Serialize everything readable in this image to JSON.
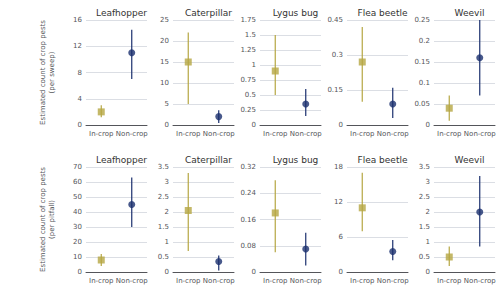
{
  "chart_data": [
    {
      "type": "scatter",
      "title": "Leafhopper",
      "ylabel": "Estimated count of crop pests\n(per sweep)",
      "categories": [
        "In-crop",
        "Non-crop"
      ],
      "series": [
        {
          "color": "#b5a642",
          "marker": "square",
          "values": [
            2.0,
            null
          ],
          "lower": [
            1.2,
            null
          ],
          "upper": [
            3.0,
            null
          ]
        },
        {
          "color": "#1a2f6e",
          "marker": "circle",
          "values": [
            null,
            11.0
          ],
          "lower": [
            null,
            7.0
          ],
          "upper": [
            null,
            14.5
          ]
        }
      ],
      "ylim": [
        0,
        16
      ],
      "yticks": [
        0,
        4,
        8,
        12,
        16
      ],
      "grid": true
    },
    {
      "type": "scatter",
      "title": "Caterpillar",
      "categories": [
        "In-crop",
        "Non-crop"
      ],
      "series": [
        {
          "color": "#b5a642",
          "marker": "square",
          "values": [
            15.0,
            null
          ],
          "lower": [
            5.0,
            null
          ],
          "upper": [
            22.0,
            null
          ]
        },
        {
          "color": "#1a2f6e",
          "marker": "circle",
          "values": [
            null,
            2.0
          ],
          "lower": [
            null,
            0.5
          ],
          "upper": [
            null,
            3.5
          ]
        }
      ],
      "ylim": [
        0,
        25
      ],
      "yticks": [
        0,
        5,
        10,
        15,
        20,
        25
      ],
      "grid": true
    },
    {
      "type": "scatter",
      "title": "Lygus bug",
      "categories": [
        "In-crop",
        "Non-crop"
      ],
      "series": [
        {
          "color": "#b5a642",
          "marker": "square",
          "values": [
            0.9,
            null
          ],
          "lower": [
            0.5,
            null
          ],
          "upper": [
            1.5,
            null
          ]
        },
        {
          "color": "#1a2f6e",
          "marker": "circle",
          "values": [
            null,
            0.35
          ],
          "lower": [
            null,
            0.15
          ],
          "upper": [
            null,
            0.6
          ]
        }
      ],
      "ylim": [
        0,
        1.75
      ],
      "yticks": [
        0,
        0.25,
        0.5,
        0.75,
        1,
        1.25,
        1.5,
        1.75
      ],
      "grid": true
    },
    {
      "type": "scatter",
      "title": "Flea beetle",
      "categories": [
        "In-crop",
        "Non-crop"
      ],
      "series": [
        {
          "color": "#b5a642",
          "marker": "square",
          "values": [
            0.27,
            null
          ],
          "lower": [
            0.1,
            null
          ],
          "upper": [
            0.42,
            null
          ]
        },
        {
          "color": "#1a2f6e",
          "marker": "circle",
          "values": [
            null,
            0.09
          ],
          "lower": [
            null,
            0.03
          ],
          "upper": [
            null,
            0.16
          ]
        }
      ],
      "ylim": [
        0,
        0.45
      ],
      "yticks": [
        0,
        0.15,
        0.3,
        0.45
      ],
      "grid": true
    },
    {
      "type": "scatter",
      "title": "Weevil",
      "categories": [
        "In-crop",
        "Non-crop"
      ],
      "series": [
        {
          "color": "#b5a642",
          "marker": "square",
          "values": [
            0.04,
            null
          ],
          "lower": [
            0.01,
            null
          ],
          "upper": [
            0.07,
            null
          ]
        },
        {
          "color": "#1a2f6e",
          "marker": "circle",
          "values": [
            null,
            0.16
          ],
          "lower": [
            null,
            0.07
          ],
          "upper": [
            null,
            0.25
          ]
        }
      ],
      "ylim": [
        0,
        0.25
      ],
      "yticks": [
        0,
        0.05,
        0.1,
        0.15,
        0.2,
        0.25
      ],
      "grid": true
    },
    {
      "type": "scatter",
      "title": "Leafhopper",
      "ylabel": "Estimated count of crop pests\n(per pitfall)",
      "categories": [
        "In-crop",
        "Non-crop"
      ],
      "series": [
        {
          "color": "#b5a642",
          "marker": "square",
          "values": [
            8.0,
            null
          ],
          "lower": [
            4.0,
            null
          ],
          "upper": [
            12.0,
            null
          ]
        },
        {
          "color": "#1a2f6e",
          "marker": "circle",
          "values": [
            null,
            45.0
          ],
          "lower": [
            null,
            30.0
          ],
          "upper": [
            null,
            63.0
          ]
        }
      ],
      "ylim": [
        0,
        70
      ],
      "yticks": [
        0,
        10,
        20,
        30,
        40,
        50,
        60,
        70
      ],
      "grid": true
    },
    {
      "type": "scatter",
      "title": "Caterpillar",
      "categories": [
        "In-crop",
        "Non-crop"
      ],
      "series": [
        {
          "color": "#b5a642",
          "marker": "square",
          "values": [
            2.05,
            null
          ],
          "lower": [
            0.7,
            null
          ],
          "upper": [
            3.3,
            null
          ]
        },
        {
          "color": "#1a2f6e",
          "marker": "circle",
          "values": [
            null,
            0.35
          ],
          "lower": [
            null,
            0.05
          ],
          "upper": [
            null,
            0.55
          ]
        }
      ],
      "ylim": [
        0,
        3.5
      ],
      "yticks": [
        0,
        0.5,
        1,
        1.5,
        2,
        2.5,
        3,
        3.5
      ],
      "grid": true
    },
    {
      "type": "scatter",
      "title": "Lygus bug",
      "categories": [
        "In-crop",
        "Non-crop"
      ],
      "series": [
        {
          "color": "#b5a642",
          "marker": "square",
          "values": [
            0.18,
            null
          ],
          "lower": [
            0.06,
            null
          ],
          "upper": [
            0.28,
            null
          ]
        },
        {
          "color": "#1a2f6e",
          "marker": "circle",
          "values": [
            null,
            0.07
          ],
          "lower": [
            null,
            0.02
          ],
          "upper": [
            null,
            0.12
          ]
        }
      ],
      "ylim": [
        0,
        0.32
      ],
      "yticks": [
        0,
        0.08,
        0.16,
        0.24,
        0.32
      ],
      "grid": true
    },
    {
      "type": "scatter",
      "title": "Flea beetle",
      "categories": [
        "In-crop",
        "Non-crop"
      ],
      "series": [
        {
          "color": "#b5a642",
          "marker": "square",
          "values": [
            11.0,
            null
          ],
          "lower": [
            7.0,
            null
          ],
          "upper": [
            17.0,
            null
          ]
        },
        {
          "color": "#1a2f6e",
          "marker": "circle",
          "values": [
            null,
            3.5
          ],
          "lower": [
            null,
            2.0
          ],
          "upper": [
            null,
            5.5
          ]
        }
      ],
      "ylim": [
        0,
        18
      ],
      "yticks": [
        0,
        6,
        12,
        18
      ],
      "grid": true
    },
    {
      "type": "scatter",
      "title": "Weevil",
      "categories": [
        "In-crop",
        "Non-crop"
      ],
      "series": [
        {
          "color": "#b5a642",
          "marker": "square",
          "values": [
            0.5,
            null
          ],
          "lower": [
            0.2,
            null
          ],
          "upper": [
            0.85,
            null
          ]
        },
        {
          "color": "#1a2f6e",
          "marker": "circle",
          "values": [
            null,
            2.0
          ],
          "lower": [
            null,
            0.85
          ],
          "upper": [
            null,
            3.2
          ]
        }
      ],
      "ylim": [
        0,
        3.5
      ],
      "yticks": [
        0,
        0.5,
        1,
        1.5,
        2,
        2.5,
        3,
        3.5
      ],
      "grid": true
    }
  ]
}
